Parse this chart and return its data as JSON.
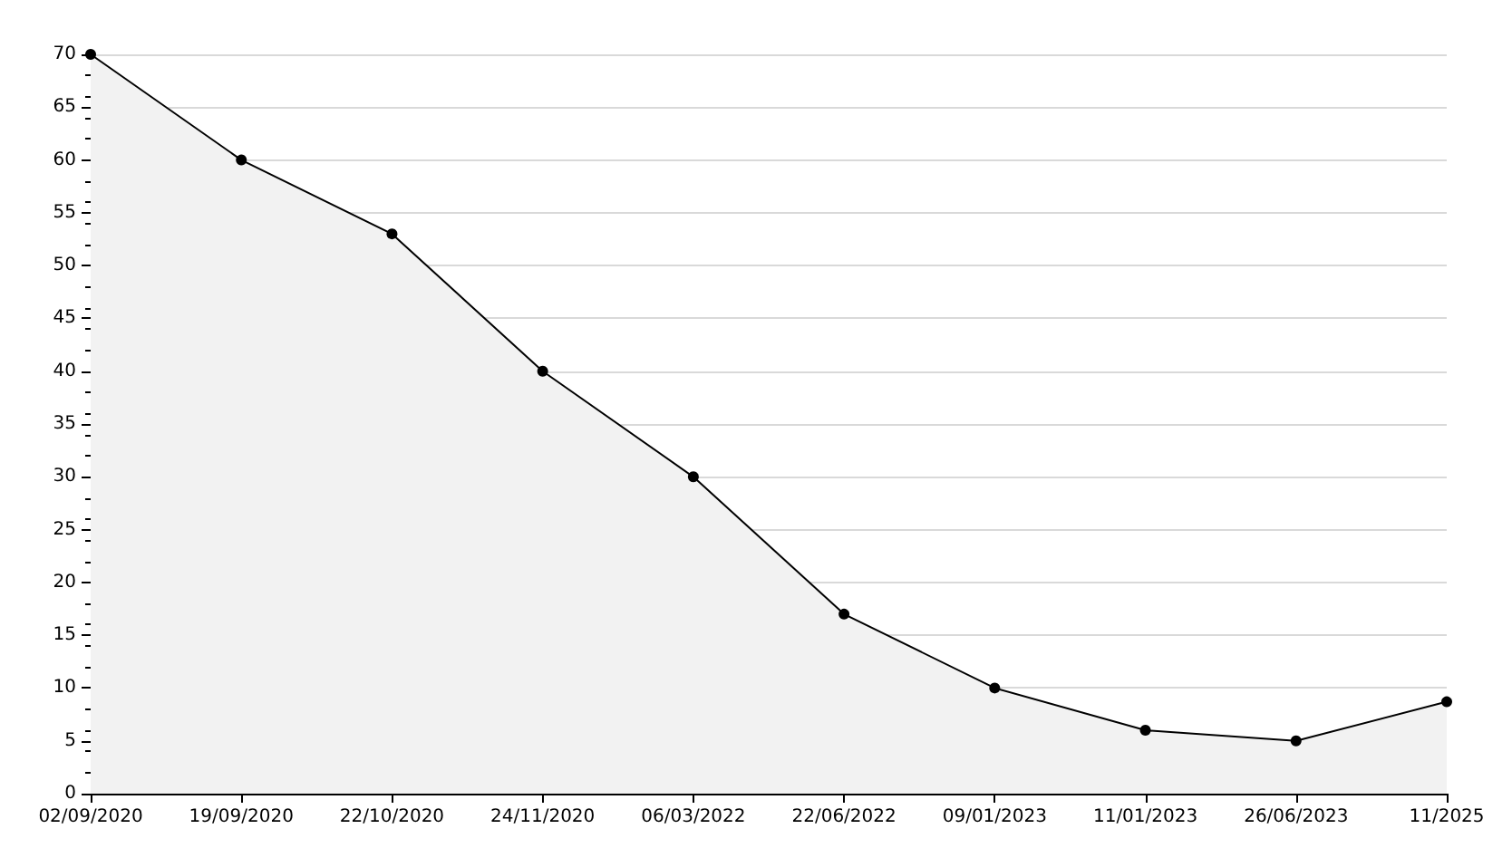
{
  "chart_data": {
    "type": "area",
    "categories": [
      "02/09/2020",
      "19/09/2020",
      "22/10/2020",
      "24/11/2020",
      "06/03/2022",
      "22/06/2022",
      "09/01/2023",
      "11/01/2023",
      "26/06/2023",
      "11/2025"
    ],
    "series": [
      {
        "color": "#000000",
        "values": [
          70,
          60,
          53,
          40,
          30,
          17,
          10,
          6,
          5,
          8.7
        ]
      }
    ],
    "ylim": [
      0,
      70
    ],
    "yticks": [
      0,
      5,
      10,
      15,
      20,
      25,
      30,
      35,
      40,
      45,
      50,
      55,
      60,
      65,
      70
    ],
    "grid": "y",
    "marker": "circle",
    "line_style": "solid"
  }
}
